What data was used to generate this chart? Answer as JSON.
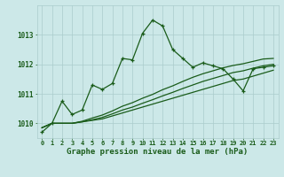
{
  "title": "Graphe pression niveau de la mer (hPa)",
  "background_color": "#cce8e8",
  "grid_color": "#aacccc",
  "line_color": "#1a5c1a",
  "text_color": "#1a5c1a",
  "hours": [
    0,
    1,
    2,
    3,
    4,
    5,
    6,
    7,
    8,
    9,
    10,
    11,
    12,
    13,
    14,
    15,
    16,
    17,
    18,
    19,
    20,
    21,
    22,
    23
  ],
  "pressure_main": [
    1009.7,
    1010.0,
    1010.75,
    1010.3,
    1010.45,
    1011.3,
    1011.15,
    1011.35,
    1012.2,
    1012.15,
    1013.05,
    1013.5,
    1013.3,
    1012.5,
    1012.2,
    1011.9,
    1012.05,
    1011.95,
    1011.85,
    1011.5,
    1011.1,
    1011.85,
    1011.9,
    1011.95
  ],
  "pressure_line1": [
    1009.85,
    1010.0,
    1010.0,
    1010.0,
    1010.05,
    1010.1,
    1010.15,
    1010.25,
    1010.35,
    1010.45,
    1010.55,
    1010.65,
    1010.75,
    1010.85,
    1010.95,
    1011.05,
    1011.15,
    1011.25,
    1011.35,
    1011.45,
    1011.5,
    1011.6,
    1011.7,
    1011.8
  ],
  "pressure_line2": [
    1009.85,
    1010.0,
    1010.0,
    1010.0,
    1010.05,
    1010.12,
    1010.2,
    1010.32,
    1010.45,
    1010.55,
    1010.68,
    1010.8,
    1010.93,
    1011.05,
    1011.18,
    1011.3,
    1011.42,
    1011.52,
    1011.62,
    1011.72,
    1011.78,
    1011.87,
    1011.95,
    1012.0
  ],
  "pressure_line3": [
    1009.85,
    1010.0,
    1010.0,
    1010.0,
    1010.07,
    1010.18,
    1010.28,
    1010.42,
    1010.58,
    1010.7,
    1010.85,
    1010.98,
    1011.14,
    1011.27,
    1011.42,
    1011.56,
    1011.68,
    1011.78,
    1011.88,
    1011.96,
    1012.02,
    1012.1,
    1012.18,
    1012.2
  ],
  "ylim": [
    1009.5,
    1014.0
  ],
  "yticks": [
    1010,
    1011,
    1012,
    1013
  ],
  "figsize": [
    3.2,
    2.0
  ],
  "dpi": 100
}
